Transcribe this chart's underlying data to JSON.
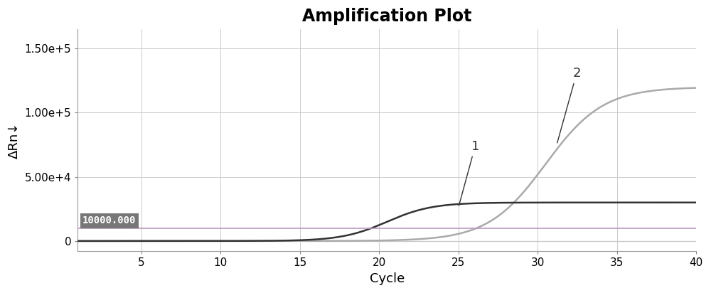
{
  "title": "Amplification Plot",
  "xlabel": "Cycle",
  "ylabel": "ΔRn↓",
  "xlim": [
    1,
    40
  ],
  "ylim": [
    -8000,
    165000
  ],
  "yticks": [
    0,
    50000,
    100000,
    150000
  ],
  "xticks": [
    5,
    10,
    15,
    20,
    25,
    30,
    35,
    40
  ],
  "grid_color": "#cccccc",
  "background_color": "#ffffff",
  "threshold_y": 10000,
  "threshold_label": "10000.000",
  "threshold_box_color": "#777777",
  "threshold_text_color": "#ffffff",
  "threshold_line_color": "#bb99bb",
  "curve1_color": "#333333",
  "curve2_color": "#aaaaaa",
  "baseline_color": "#666666",
  "curve1_label": "1",
  "curve2_label": "2",
  "title_fontsize": 17,
  "axis_label_fontsize": 13,
  "tick_fontsize": 11,
  "annotation_fontsize": 13,
  "curve1_x0": 20.5,
  "curve1_k": 0.7,
  "curve1_ymax": 30000,
  "curve2_x0": 30.5,
  "curve2_k": 0.55,
  "curve2_ymax": 120000
}
